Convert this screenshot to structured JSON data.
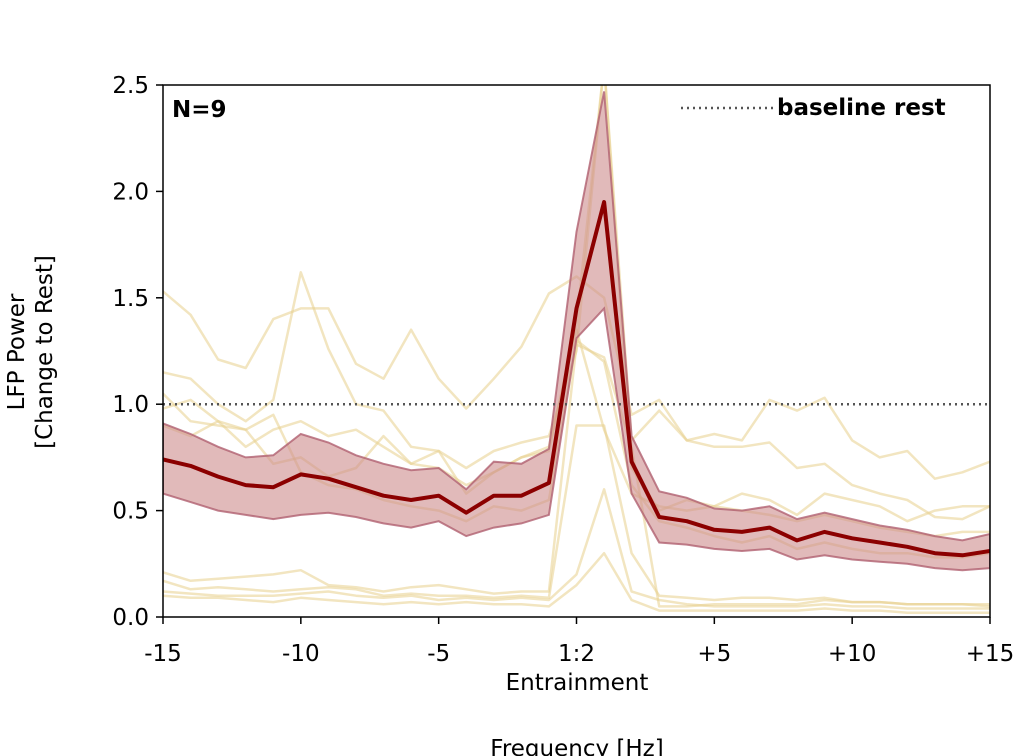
{
  "chart_data": {
    "type": "line",
    "annotation": "N=9",
    "legend": {
      "label": "baseline rest",
      "placement": "top-right",
      "style": "dotted"
    },
    "xlabel": "Frequency [Hz]",
    "ylabel": [
      "LFP Power",
      "[Change to Rest]"
    ],
    "center_tick_sublabel": "Entrainment",
    "xlim": [
      -15,
      15
    ],
    "ylim": [
      0,
      2.5
    ],
    "x_ticks": [
      {
        "x": -15,
        "label": "-15"
      },
      {
        "x": -10,
        "label": "-10"
      },
      {
        "x": -5,
        "label": "-5"
      },
      {
        "x": 0,
        "label": "1:2"
      },
      {
        "x": 5,
        "label": "+5"
      },
      {
        "x": 10,
        "label": "+10"
      },
      {
        "x": 15,
        "label": "+15"
      }
    ],
    "y_ticks": [
      {
        "y": 0.0,
        "label": "0.0"
      },
      {
        "y": 0.5,
        "label": "0.5"
      },
      {
        "y": 1.0,
        "label": "1.0"
      },
      {
        "y": 1.5,
        "label": "1.5"
      },
      {
        "y": 2.0,
        "label": "2.0"
      },
      {
        "y": 2.5,
        "label": "2.5"
      }
    ],
    "baseline": 1.0,
    "x": [
      -15,
      -14,
      -13,
      -12,
      -11,
      -10,
      -9,
      -8,
      -7,
      -6,
      -5,
      -4,
      -3,
      -2,
      -1,
      0,
      1,
      2,
      3,
      4,
      5,
      6,
      7,
      8,
      9,
      10,
      11,
      12,
      13,
      14,
      15
    ],
    "mean": [
      0.74,
      0.71,
      0.66,
      0.62,
      0.61,
      0.67,
      0.65,
      0.61,
      0.57,
      0.55,
      0.57,
      0.49,
      0.57,
      0.57,
      0.63,
      1.45,
      1.95,
      0.73,
      0.47,
      0.45,
      0.41,
      0.4,
      0.42,
      0.36,
      0.4,
      0.37,
      0.35,
      0.33,
      0.3,
      0.29,
      0.31
    ],
    "upper": [
      0.91,
      0.86,
      0.8,
      0.75,
      0.76,
      0.86,
      0.82,
      0.76,
      0.72,
      0.69,
      0.7,
      0.6,
      0.73,
      0.72,
      0.79,
      1.81,
      2.47,
      0.85,
      0.59,
      0.56,
      0.51,
      0.5,
      0.52,
      0.46,
      0.49,
      0.46,
      0.43,
      0.41,
      0.38,
      0.36,
      0.39
    ],
    "lower": [
      0.58,
      0.54,
      0.5,
      0.48,
      0.46,
      0.48,
      0.49,
      0.47,
      0.44,
      0.42,
      0.45,
      0.38,
      0.42,
      0.44,
      0.48,
      1.31,
      1.45,
      0.58,
      0.35,
      0.34,
      0.32,
      0.31,
      0.32,
      0.27,
      0.29,
      0.27,
      0.26,
      0.25,
      0.23,
      0.22,
      0.23
    ],
    "individual_series": [
      [
        1.53,
        1.42,
        1.21,
        1.17,
        1.4,
        1.45,
        1.45,
        1.19,
        1.12,
        1.35,
        1.12,
        0.98,
        1.12,
        1.27,
        1.52,
        1.6,
        1.5,
        0.95,
        1.02,
        0.83,
        0.86,
        0.83,
        1.02,
        0.97,
        1.03,
        0.83,
        0.75,
        0.78,
        0.65,
        0.68,
        0.73
      ],
      [
        1.15,
        1.12,
        1.0,
        0.92,
        1.02,
        1.62,
        1.26,
        1.0,
        0.97,
        0.8,
        0.78,
        0.7,
        0.78,
        0.82,
        0.85,
        1.25,
        2.6,
        0.83,
        0.97,
        0.83,
        0.8,
        0.8,
        0.82,
        0.7,
        0.72,
        0.62,
        0.58,
        0.55,
        0.47,
        0.46,
        0.52
      ],
      [
        1.05,
        0.92,
        0.9,
        0.88,
        0.72,
        0.75,
        0.66,
        0.7,
        0.85,
        0.72,
        0.7,
        0.62,
        0.68,
        0.75,
        0.78,
        1.38,
        2.6,
        0.7,
        0.5,
        0.55,
        0.52,
        0.58,
        0.55,
        0.48,
        0.58,
        0.55,
        0.52,
        0.45,
        0.5,
        0.52,
        0.52
      ],
      [
        0.98,
        1.02,
        0.92,
        0.8,
        0.88,
        0.92,
        0.85,
        0.88,
        0.8,
        0.72,
        0.78,
        0.58,
        0.68,
        0.75,
        0.8,
        1.35,
        0.88,
        0.58,
        0.52,
        0.5,
        0.52,
        0.5,
        0.48,
        0.45,
        0.48,
        0.45,
        0.42,
        0.4,
        0.38,
        0.4,
        0.4
      ],
      [
        0.9,
        0.85,
        0.92,
        0.88,
        0.95,
        0.68,
        0.62,
        0.6,
        0.55,
        0.52,
        0.5,
        0.45,
        0.52,
        0.5,
        0.55,
        1.3,
        1.2,
        0.62,
        0.45,
        0.42,
        0.38,
        0.35,
        0.38,
        0.32,
        0.35,
        0.32,
        0.3,
        0.3,
        0.28,
        0.28,
        0.3
      ],
      [
        0.21,
        0.17,
        0.18,
        0.19,
        0.2,
        0.22,
        0.15,
        0.14,
        0.12,
        0.14,
        0.15,
        0.13,
        0.11,
        0.12,
        0.12,
        1.28,
        1.22,
        0.8,
        0.05,
        0.05,
        0.06,
        0.06,
        0.06,
        0.06,
        0.08,
        0.07,
        0.07,
        0.06,
        0.06,
        0.06,
        0.05
      ],
      [
        0.17,
        0.13,
        0.14,
        0.13,
        0.12,
        0.13,
        0.14,
        0.13,
        0.1,
        0.11,
        0.1,
        0.1,
        0.09,
        0.1,
        0.09,
        0.9,
        0.9,
        0.3,
        0.1,
        0.09,
        0.08,
        0.09,
        0.09,
        0.08,
        0.09,
        0.07,
        0.07,
        0.06,
        0.06,
        0.06,
        0.06
      ],
      [
        0.12,
        0.11,
        0.1,
        0.1,
        0.1,
        0.11,
        0.12,
        0.1,
        0.09,
        0.1,
        0.08,
        0.09,
        0.08,
        0.09,
        0.08,
        0.2,
        0.6,
        0.12,
        0.08,
        0.06,
        0.05,
        0.05,
        0.05,
        0.05,
        0.06,
        0.05,
        0.05,
        0.04,
        0.04,
        0.04,
        0.04
      ],
      [
        0.1,
        0.09,
        0.09,
        0.08,
        0.07,
        0.09,
        0.08,
        0.07,
        0.06,
        0.07,
        0.06,
        0.07,
        0.06,
        0.06,
        0.05,
        0.15,
        0.3,
        0.08,
        0.03,
        0.03,
        0.03,
        0.03,
        0.03,
        0.03,
        0.04,
        0.03,
        0.03,
        0.02,
        0.02,
        0.02,
        0.02
      ]
    ],
    "colors": {
      "mean_line": "#8b0000",
      "band_fill": "#cd8c8c",
      "band_edge": "#b06070",
      "individual": "#e8d08c",
      "baseline": "#555555"
    },
    "grid": false
  }
}
